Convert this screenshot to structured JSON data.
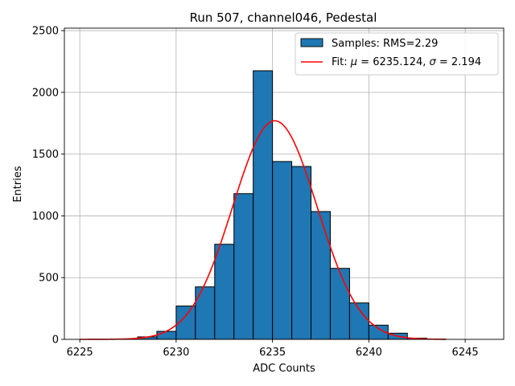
{
  "chart_data": {
    "type": "bar",
    "title": "Run 507, channel046, Pedestal",
    "xlabel": "ADC Counts",
    "ylabel": "Entries",
    "xlim": [
      6224.2,
      6247.0
    ],
    "ylim": [
      0,
      2520
    ],
    "xticks": [
      6225,
      6230,
      6235,
      6240,
      6245
    ],
    "xtick_labels": [
      "6225",
      "6230",
      "6235",
      "6240",
      "6245"
    ],
    "yticks": [
      0,
      500,
      1000,
      1500,
      2000,
      2500
    ],
    "ytick_labels": [
      "0",
      "500",
      "1000",
      "1500",
      "2000",
      "2500"
    ],
    "grid": true,
    "legend_position": "top-right",
    "histogram": {
      "name": "Samples: RMS=2.29",
      "color": "#1f77b4",
      "edgecolor": "#000000",
      "bin_edges": [
        6227,
        6228,
        6229,
        6230,
        6231,
        6232,
        6233,
        6234,
        6235,
        6236,
        6237,
        6238,
        6239,
        6240,
        6241,
        6242,
        6243,
        6244
      ],
      "counts": [
        3,
        20,
        65,
        270,
        425,
        770,
        1180,
        2175,
        1440,
        1400,
        1035,
        575,
        295,
        115,
        50,
        10,
        2
      ]
    },
    "fit": {
      "name_prefix": "Fit: ",
      "mu_symbol": "μ",
      "mu_text": " = 6235.124, ",
      "sigma_symbol": "σ",
      "sigma_text": " = 2.194",
      "color": "#ff0000",
      "mu": 6235.124,
      "sigma": 2.194,
      "amplitude": 1770,
      "x_range": [
        6225,
        6244
      ]
    }
  }
}
